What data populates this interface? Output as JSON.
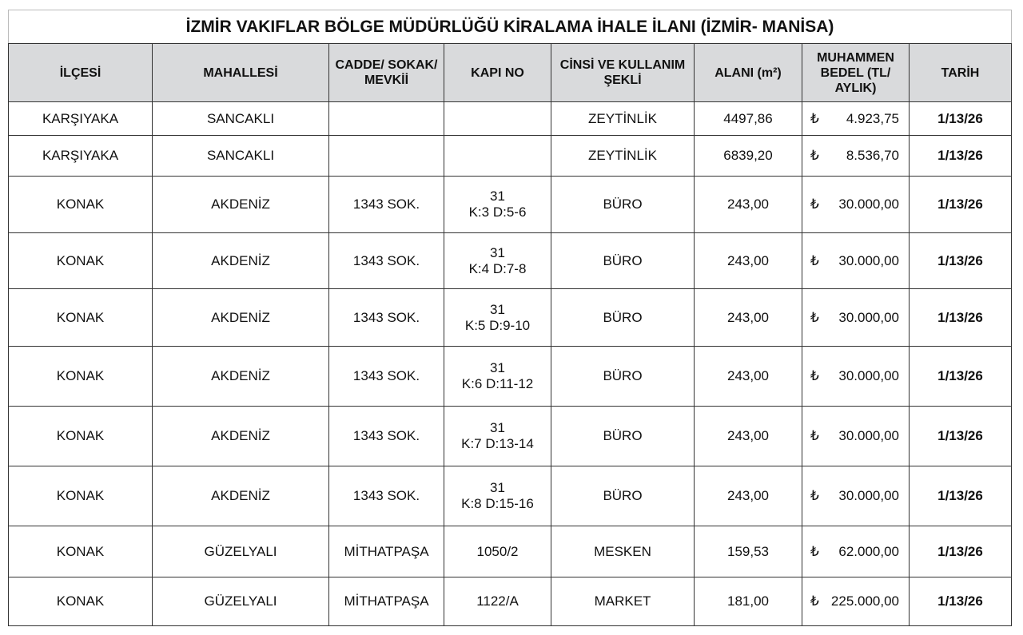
{
  "title": "İZMİR VAKIFLAR BÖLGE MÜDÜRLÜĞÜ KİRALAMA İHALE İLANI (İZMİR- MANİSA)",
  "headers": [
    "İLÇESİ",
    "MAHALLESİ",
    "CADDE/ SOKAK/ MEVKİİ",
    "KAPI NO",
    "CİNSİ VE KULLANIM ŞEKLİ",
    "ALANI (m²)",
    "MUHAMMEN BEDEL (TL/ AYLIK)",
    "TARİH"
  ],
  "currency_symbol": "₺",
  "rows": [
    {
      "ilce": "KARŞIYAKA",
      "mahalle": "SANCAKLI",
      "cadde": "",
      "kapi1": "",
      "kapi2": "",
      "cins": "ZEYTİNLİK",
      "alan": "4497,86",
      "bedel": "4.923,75",
      "tarih": "1/13/26"
    },
    {
      "ilce": "KARŞIYAKA",
      "mahalle": "SANCAKLI",
      "cadde": "",
      "kapi1": "",
      "kapi2": "",
      "cins": "ZEYTİNLİK",
      "alan": "6839,20",
      "bedel": "8.536,70",
      "tarih": "1/13/26"
    },
    {
      "ilce": "KONAK",
      "mahalle": "AKDENİZ",
      "cadde": "1343 SOK.",
      "kapi1": "31",
      "kapi2": "K:3 D:5-6",
      "cins": "BÜRO",
      "alan": "243,00",
      "bedel": "30.000,00",
      "tarih": "1/13/26"
    },
    {
      "ilce": "KONAK",
      "mahalle": "AKDENİZ",
      "cadde": "1343 SOK.",
      "kapi1": "31",
      "kapi2": "K:4 D:7-8",
      "cins": "BÜRO",
      "alan": "243,00",
      "bedel": "30.000,00",
      "tarih": "1/13/26"
    },
    {
      "ilce": "KONAK",
      "mahalle": "AKDENİZ",
      "cadde": "1343 SOK.",
      "kapi1": "31",
      "kapi2": "K:5 D:9-10",
      "cins": "BÜRO",
      "alan": "243,00",
      "bedel": "30.000,00",
      "tarih": "1/13/26"
    },
    {
      "ilce": "KONAK",
      "mahalle": "AKDENİZ",
      "cadde": "1343 SOK.",
      "kapi1": "31",
      "kapi2": "K:6 D:11-12",
      "cins": "BÜRO",
      "alan": "243,00",
      "bedel": "30.000,00",
      "tarih": "1/13/26"
    },
    {
      "ilce": "KONAK",
      "mahalle": "AKDENİZ",
      "cadde": "1343 SOK.",
      "kapi1": "31",
      "kapi2": "K:7 D:13-14",
      "cins": "BÜRO",
      "alan": "243,00",
      "bedel": "30.000,00",
      "tarih": "1/13/26"
    },
    {
      "ilce": "KONAK",
      "mahalle": "AKDENİZ",
      "cadde": "1343 SOK.",
      "kapi1": "31",
      "kapi2": "K:8 D:15-16",
      "cins": "BÜRO",
      "alan": "243,00",
      "bedel": "30.000,00",
      "tarih": "1/13/26"
    },
    {
      "ilce": "KONAK",
      "mahalle": "GÜZELYALI",
      "cadde": "MİTHATPAŞA",
      "kapi1": "1050/2",
      "kapi2": "",
      "cins": "MESKEN",
      "alan": "159,53",
      "bedel": "62.000,00",
      "tarih": "1/13/26"
    },
    {
      "ilce": "KONAK",
      "mahalle": "GÜZELYALI",
      "cadde": "MİTHATPAŞA",
      "kapi1": "1122/A",
      "kapi2": "",
      "cins": "MARKET",
      "alan": "181,00",
      "bedel": "225.000,00",
      "tarih": "1/13/26"
    }
  ]
}
